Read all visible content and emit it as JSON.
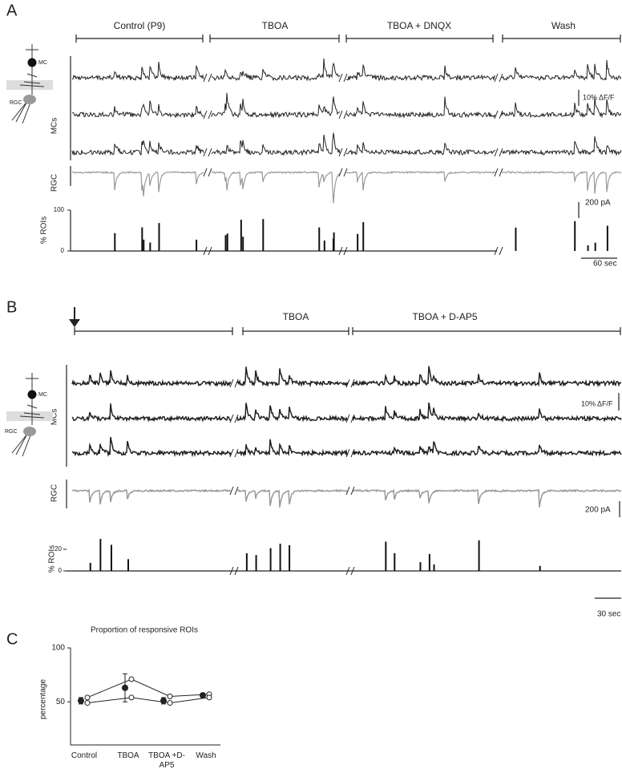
{
  "panel_a": {
    "label": "A",
    "cartoon_labels": [
      "MC",
      "RGC"
    ],
    "conditions": [
      "Control (P9)",
      "TBOA",
      "TBOA + DNQX",
      "Wash"
    ],
    "mc_label": "MCs",
    "rgc_label": "RGC",
    "roi_label": "% ROIs",
    "roi_ticks": [
      100,
      0
    ],
    "scale_df": "10% ΔF/F",
    "scale_pa": "200 pA",
    "scale_time": "60 sec"
  },
  "panel_b": {
    "label": "B",
    "cartoon_labels": [
      "MC",
      "RGC"
    ],
    "conditions": [
      "TBOA",
      "TBOA + D-AP5"
    ],
    "mc_label": "MCs",
    "rgc_label": "RGC",
    "roi_label": "% ROIs",
    "roi_ticks": [
      20,
      0
    ],
    "scale_df": "10% ΔF/F",
    "scale_pa": "200 pA",
    "scale_time": "30 sec"
  },
  "panel_c_label": "C",
  "chart_data": {
    "type": "line",
    "title": "Proportion of responsive ROIs",
    "y_label": "percentage",
    "categories": [
      "Control",
      "TBOA",
      "TBOA +D-AP5",
      "Wash"
    ],
    "ylim": [
      10,
      100
    ],
    "yticks": [
      50,
      100
    ],
    "series": [
      {
        "color": "#222222",
        "marker": "filled",
        "values": [
          51,
          63,
          51,
          56
        ],
        "errors": [
          3,
          13,
          3,
          2
        ]
      },
      {
        "color": "#222222",
        "marker": "open",
        "values": [
          54,
          71,
          55,
          57
        ]
      },
      {
        "color": "#222222",
        "marker": "open",
        "values": [
          49,
          54,
          49,
          54
        ]
      }
    ]
  }
}
